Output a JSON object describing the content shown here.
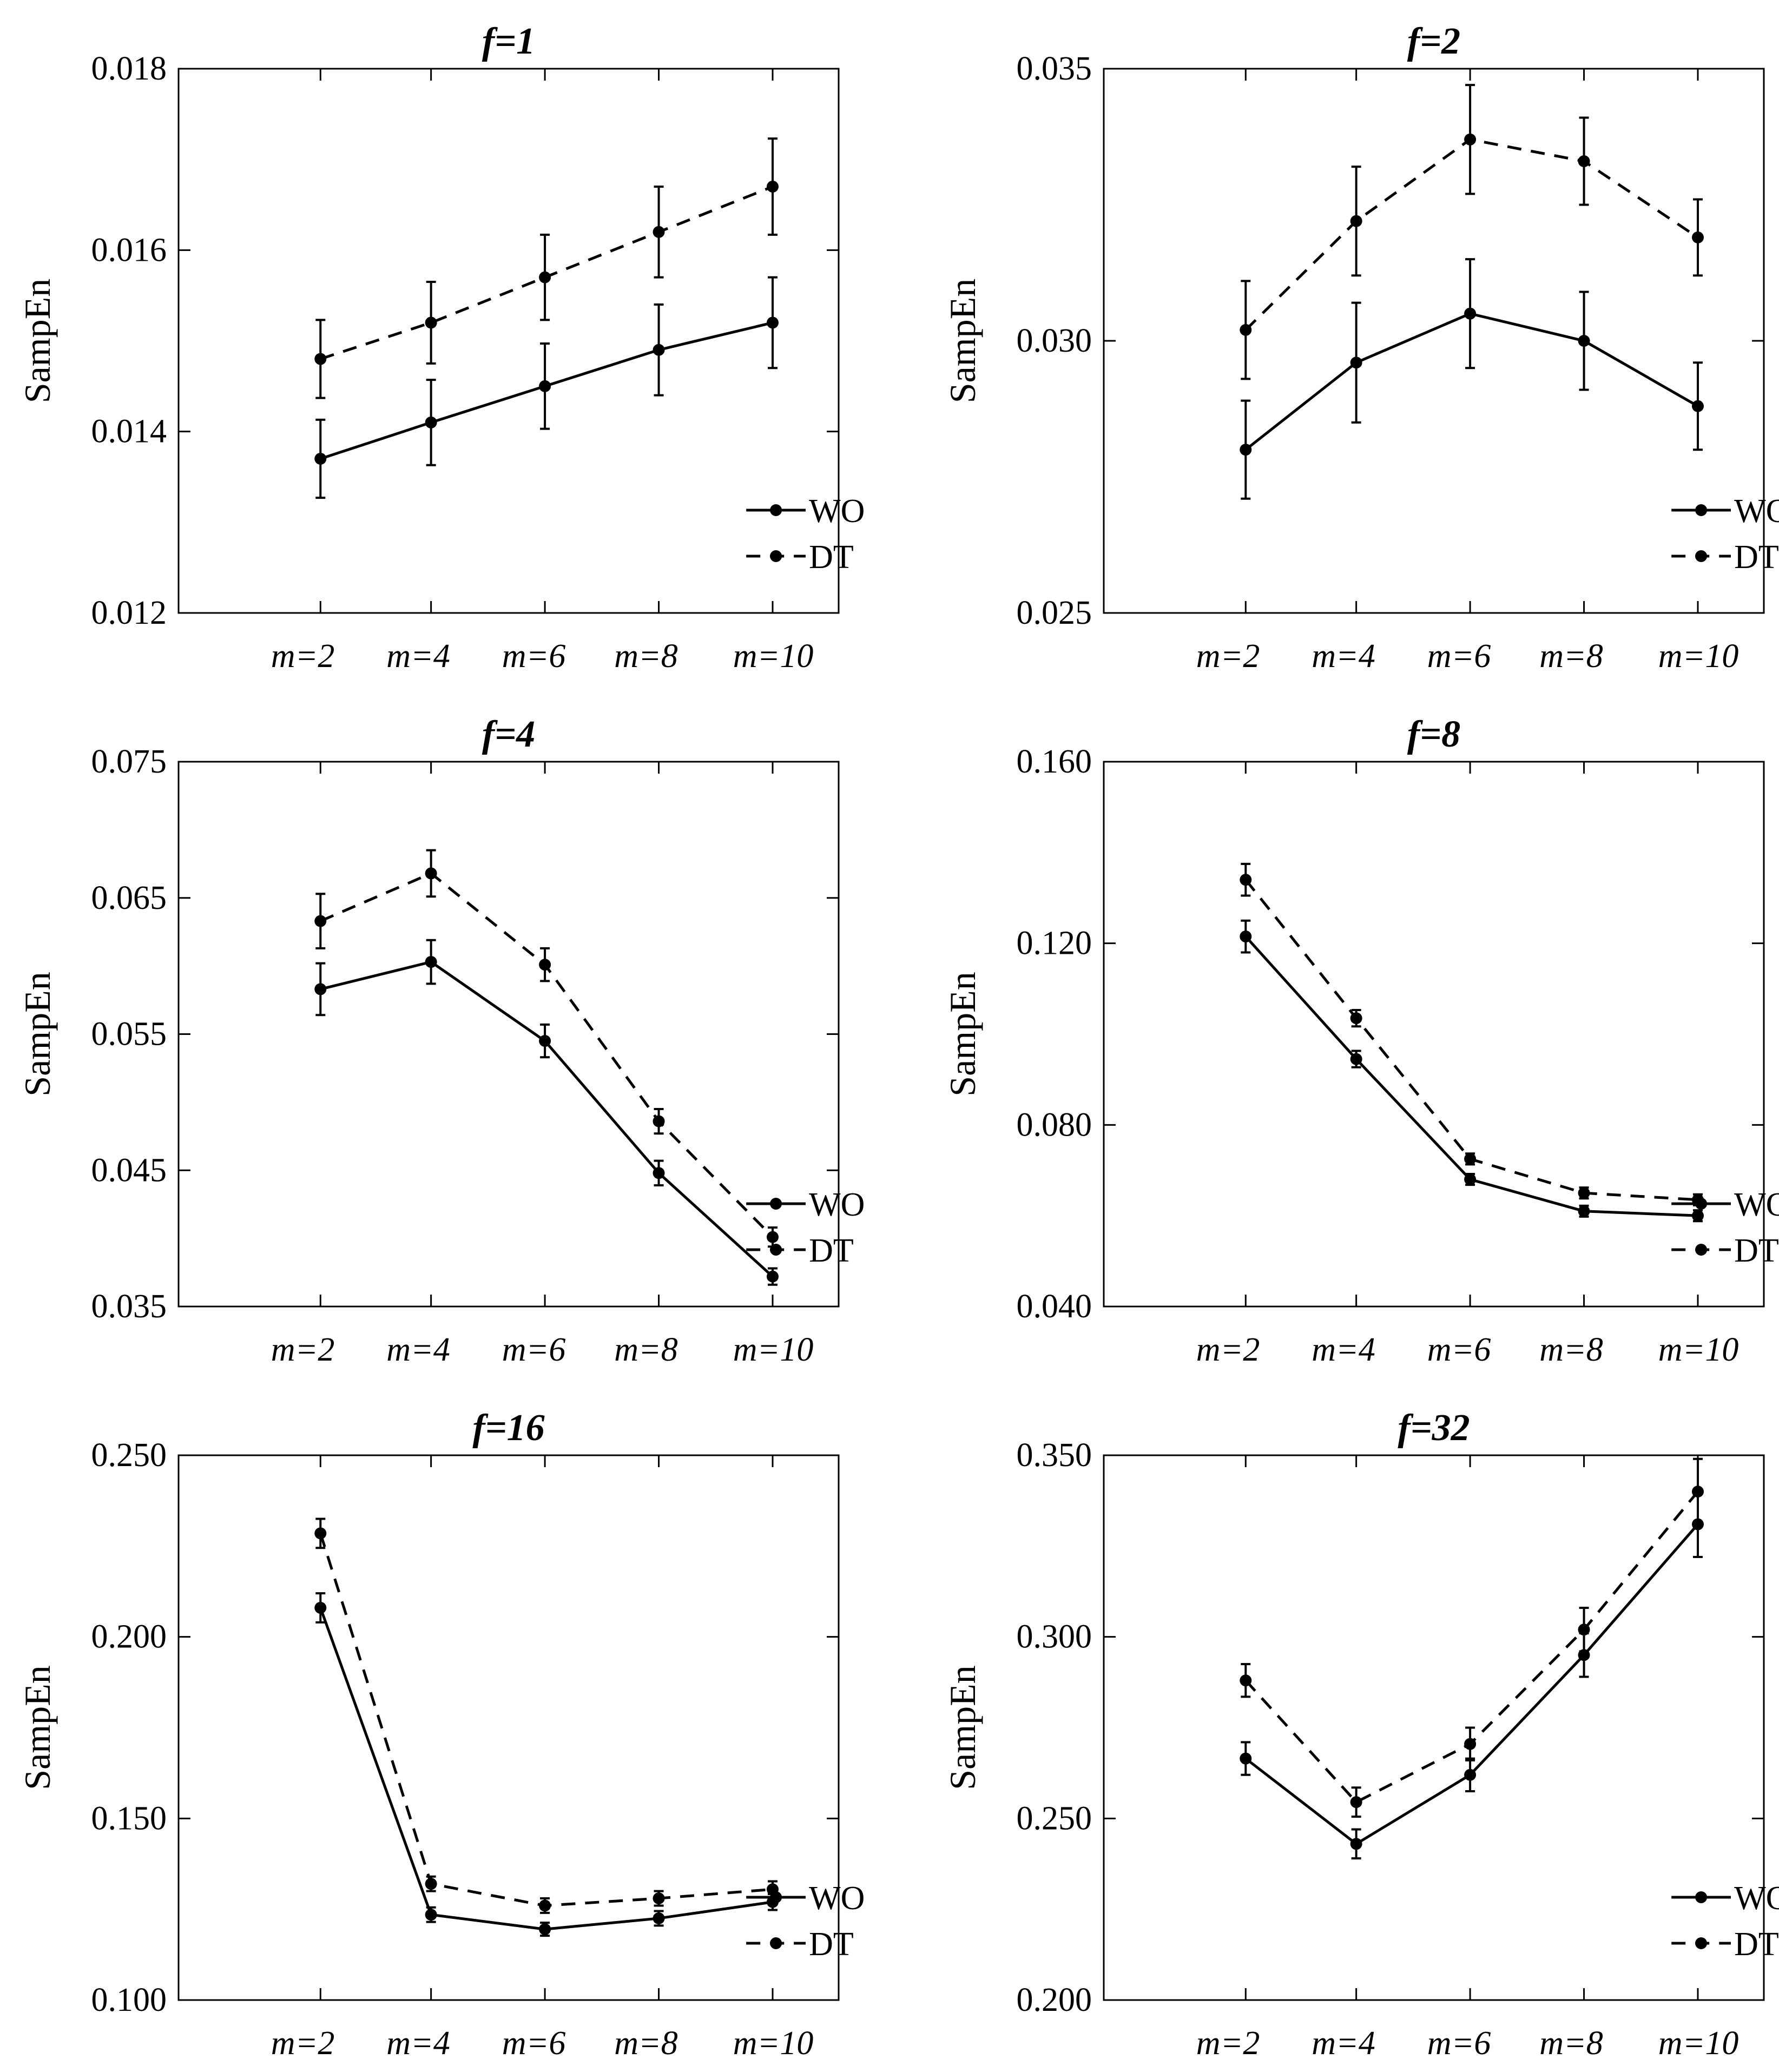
{
  "chart_data": [
    {
      "type": "line",
      "title": "f=1",
      "ylabel": "SampEn",
      "categories": [
        "m=2",
        "m=4",
        "m=6",
        "m=8",
        "m=10"
      ],
      "ylim": [
        0.012,
        0.018
      ],
      "yticks": [
        "0.012",
        "0.014",
        "0.016",
        "0.018"
      ],
      "legend_position": "bottom-right",
      "series": [
        {
          "name": "WO",
          "style": "solid",
          "values": [
            0.0137,
            0.0141,
            0.0145,
            0.0149,
            0.0152
          ],
          "errors": [
            0.00043,
            0.00047,
            0.00047,
            0.0005,
            0.0005
          ]
        },
        {
          "name": "DT",
          "style": "dashed",
          "values": [
            0.0148,
            0.0152,
            0.0157,
            0.0162,
            0.0167
          ],
          "errors": [
            0.00043,
            0.00045,
            0.00047,
            0.0005,
            0.00053
          ]
        }
      ]
    },
    {
      "type": "line",
      "title": "f=2",
      "ylabel": "SampEn",
      "categories": [
        "m=2",
        "m=4",
        "m=6",
        "m=8",
        "m=10"
      ],
      "ylim": [
        0.025,
        0.035
      ],
      "yticks": [
        "0.025",
        "0.030",
        "0.035"
      ],
      "legend_position": "bottom-right",
      "series": [
        {
          "name": "WO",
          "style": "solid",
          "values": [
            0.028,
            0.0296,
            0.0305,
            0.03,
            0.0288
          ],
          "errors": [
            0.0009,
            0.0011,
            0.001,
            0.0009,
            0.0008
          ]
        },
        {
          "name": "DT",
          "style": "dashed",
          "values": [
            0.0302,
            0.0322,
            0.0337,
            0.0333,
            0.0319
          ],
          "errors": [
            0.0009,
            0.001,
            0.001,
            0.0008,
            0.0007
          ]
        }
      ]
    },
    {
      "type": "line",
      "title": "f=4",
      "ylabel": "SampEn",
      "categories": [
        "m=2",
        "m=4",
        "m=6",
        "m=8",
        "m=10"
      ],
      "ylim": [
        0.035,
        0.075
      ],
      "yticks": [
        "0.035",
        "0.045",
        "0.055",
        "0.065",
        "0.075"
      ],
      "legend_position": "bottom-right",
      "series": [
        {
          "name": "WO",
          "style": "solid",
          "values": [
            0.0583,
            0.0603,
            0.0545,
            0.0448,
            0.0372
          ],
          "errors": [
            0.0019,
            0.0016,
            0.0012,
            0.0009,
            0.0006
          ]
        },
        {
          "name": "DT",
          "style": "dashed",
          "values": [
            0.0633,
            0.0668,
            0.0601,
            0.0486,
            0.0401
          ],
          "errors": [
            0.002,
            0.0017,
            0.0012,
            0.0009,
            0.0007
          ]
        }
      ]
    },
    {
      "type": "line",
      "title": "f=8",
      "ylabel": "SampEn",
      "categories": [
        "m=2",
        "m=4",
        "m=6",
        "m=8",
        "m=10"
      ],
      "ylim": [
        0.04,
        0.16
      ],
      "yticks": [
        "0.040",
        "0.080",
        "0.120",
        "0.160"
      ],
      "legend_position": "bottom-right",
      "series": [
        {
          "name": "WO",
          "style": "solid",
          "values": [
            0.1215,
            0.0945,
            0.068,
            0.061,
            0.06
          ],
          "errors": [
            0.0035,
            0.0018,
            0.0012,
            0.0012,
            0.0012
          ]
        },
        {
          "name": "DT",
          "style": "dashed",
          "values": [
            0.134,
            0.1035,
            0.0725,
            0.065,
            0.0635
          ],
          "errors": [
            0.0035,
            0.0018,
            0.0012,
            0.0012,
            0.0012
          ]
        }
      ]
    },
    {
      "type": "line",
      "title": "f=16",
      "ylabel": "SampEn",
      "categories": [
        "m=2",
        "m=4",
        "m=6",
        "m=8",
        "m=10"
      ],
      "ylim": [
        0.1,
        0.25
      ],
      "yticks": [
        "0.100",
        "0.150",
        "0.200",
        "0.250"
      ],
      "legend_position": "bottom-right",
      "series": [
        {
          "name": "WO",
          "style": "solid",
          "values": [
            0.208,
            0.1235,
            0.1195,
            0.1225,
            0.127
          ],
          "errors": [
            0.004,
            0.002,
            0.0018,
            0.002,
            0.0022
          ]
        },
        {
          "name": "DT",
          "style": "dashed",
          "values": [
            0.2285,
            0.132,
            0.126,
            0.128,
            0.1305
          ],
          "errors": [
            0.004,
            0.002,
            0.002,
            0.002,
            0.0022
          ]
        }
      ]
    },
    {
      "type": "line",
      "title": "f=32",
      "ylabel": "SampEn",
      "categories": [
        "m=2",
        "m=4",
        "m=6",
        "m=8",
        "m=10"
      ],
      "ylim": [
        0.2,
        0.35
      ],
      "yticks": [
        "0.200",
        "0.250",
        "0.300",
        "0.350"
      ],
      "legend_position": "bottom-right",
      "series": [
        {
          "name": "WO",
          "style": "solid",
          "values": [
            0.2665,
            0.243,
            0.262,
            0.295,
            0.331
          ],
          "errors": [
            0.0045,
            0.004,
            0.0045,
            0.006,
            0.009
          ]
        },
        {
          "name": "DT",
          "style": "dashed",
          "values": [
            0.288,
            0.2545,
            0.2705,
            0.302,
            0.34
          ],
          "errors": [
            0.0045,
            0.004,
            0.0045,
            0.006,
            0.009
          ]
        }
      ]
    }
  ]
}
